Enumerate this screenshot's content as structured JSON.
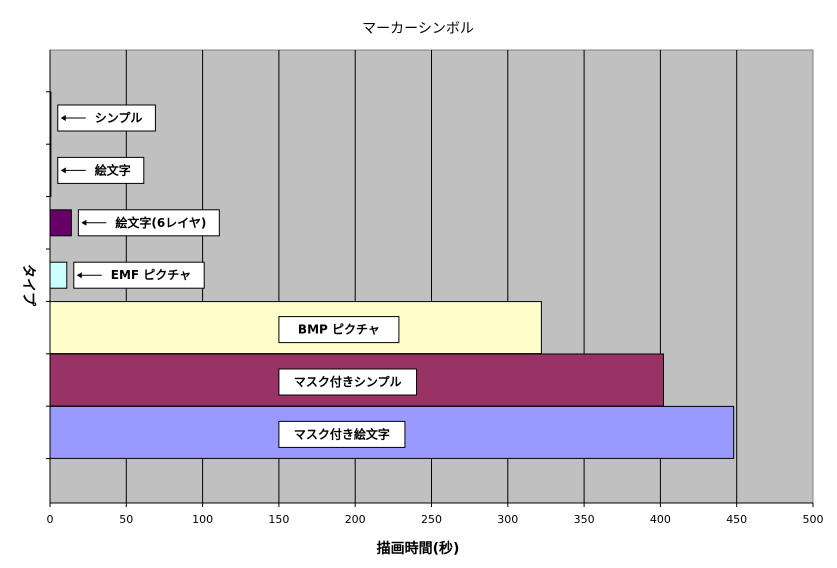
{
  "chart_data": {
    "type": "bar",
    "orientation": "horizontal",
    "title": "マーカーシンボル",
    "xlabel": "描画時間(秒)",
    "ylabel": "タイプ",
    "xlim": [
      0,
      500
    ],
    "x_ticks": [
      "0",
      "50",
      "100",
      "150",
      "200",
      "250",
      "300",
      "350",
      "400",
      "450",
      "500"
    ],
    "grid": true,
    "legend": "none",
    "categories": [
      "シンプル",
      "絵文字",
      "絵文字(6レイヤ)",
      "EMF ピクチャ",
      "BMP ピクチャ",
      "マスク付きシンプル",
      "マスク付き絵文字"
    ],
    "values": [
      0.5,
      0.5,
      14,
      11,
      322,
      402,
      448
    ],
    "colors": [
      "#333333",
      "#333333",
      "#660066",
      "#ccffff",
      "#ffffcc",
      "#993366",
      "#9999ff"
    ],
    "label_style": [
      "arrow",
      "arrow",
      "arrow",
      "arrow",
      "inside",
      "inside",
      "inside"
    ]
  }
}
